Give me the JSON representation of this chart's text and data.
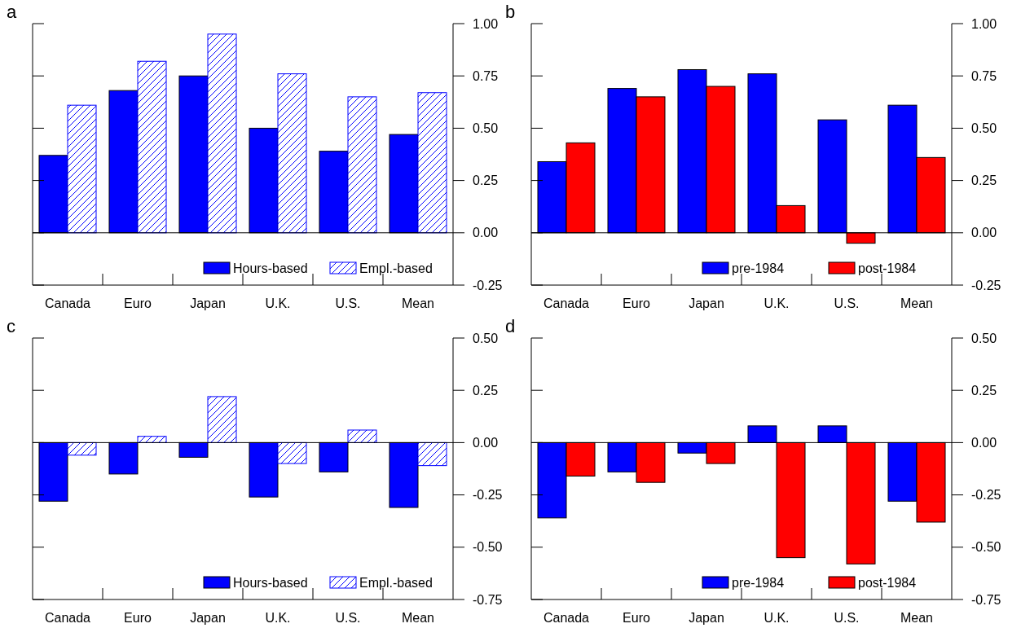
{
  "chart_data": [
    {
      "type": "bar",
      "title": "a",
      "categories": [
        "Canada",
        "Euro",
        "Japan",
        "U.K.",
        "U.S.",
        "Mean"
      ],
      "series": [
        {
          "name": "Hours-based",
          "color": "#0000ff",
          "values": [
            0.37,
            0.68,
            0.75,
            0.5,
            0.39,
            0.47
          ]
        },
        {
          "name": "Empl.-based",
          "color": "#0000ff",
          "values": [
            0.61,
            0.82,
            0.95,
            0.76,
            0.65,
            0.67
          ]
        }
      ],
      "ylim": [
        -0.25,
        1.0
      ],
      "yticks": [
        {
          "value": -0.25,
          "label": "-0.25"
        },
        {
          "value": 0,
          "label": "0.00"
        },
        {
          "value": 0.25,
          "label": "0.25"
        },
        {
          "value": 0.5,
          "label": "0.50"
        },
        {
          "value": 0.75,
          "label": "0.75"
        },
        {
          "value": 1.0,
          "label": "1.00"
        }
      ],
      "legend": "bottom right"
    },
    {
      "type": "bar",
      "title": "b",
      "categories": [
        "Canada",
        "Euro",
        "Japan",
        "U.K.",
        "U.S.",
        "Mean"
      ],
      "series": [
        {
          "name": "pre-1984",
          "color": "#0000ff",
          "values": [
            0.34,
            0.69,
            0.78,
            0.76,
            0.54,
            0.61
          ]
        },
        {
          "name": "post-1984",
          "color": "#ff0000",
          "values": [
            0.43,
            0.65,
            0.7,
            0.13,
            -0.05,
            0.36
          ]
        }
      ],
      "ylim": [
        -0.25,
        1.0
      ],
      "yticks": [
        {
          "value": -0.25,
          "label": "-0.25"
        },
        {
          "value": 0,
          "label": "0.00"
        },
        {
          "value": 0.25,
          "label": "0.25"
        },
        {
          "value": 0.5,
          "label": "0.50"
        },
        {
          "value": 0.75,
          "label": "0.75"
        },
        {
          "value": 1.0,
          "label": "1.00"
        }
      ],
      "legend": "bottom right"
    },
    {
      "type": "bar",
      "title": "c",
      "categories": [
        "Canada",
        "Euro",
        "Japan",
        "U.K.",
        "U.S.",
        "Mean"
      ],
      "series": [
        {
          "name": "Hours-based",
          "color": "#0000ff",
          "values": [
            -0.28,
            -0.15,
            -0.07,
            -0.26,
            -0.14,
            -0.31
          ]
        },
        {
          "name": "Empl.-based",
          "color": "#0000ff",
          "values": [
            -0.06,
            0.03,
            0.22,
            -0.1,
            0.06,
            -0.11
          ]
        }
      ],
      "ylim": [
        -0.75,
        0.5
      ],
      "yticks": [
        {
          "value": -0.75,
          "label": "-0.75"
        },
        {
          "value": -0.5,
          "label": "-0.50"
        },
        {
          "value": -0.25,
          "label": "-0.25"
        },
        {
          "value": 0,
          "label": "0.00"
        },
        {
          "value": 0.25,
          "label": "0.25"
        },
        {
          "value": 0.5,
          "label": "0.50"
        }
      ],
      "legend": "bottom right"
    },
    {
      "type": "bar",
      "title": "d",
      "categories": [
        "Canada",
        "Euro",
        "Japan",
        "U.K.",
        "U.S.",
        "Mean"
      ],
      "series": [
        {
          "name": "pre-1984",
          "color": "#0000ff",
          "values": [
            -0.36,
            -0.14,
            -0.05,
            0.08,
            0.08,
            -0.28
          ]
        },
        {
          "name": "post-1984",
          "color": "#ff0000",
          "values": [
            -0.16,
            -0.19,
            -0.1,
            -0.55,
            -0.58,
            -0.38
          ]
        }
      ],
      "ylim": [
        -0.75,
        0.5
      ],
      "yticks": [
        {
          "value": -0.75,
          "label": "-0.75"
        },
        {
          "value": -0.5,
          "label": "-0.50"
        },
        {
          "value": -0.25,
          "label": "-0.25"
        },
        {
          "value": 0,
          "label": "0.00"
        },
        {
          "value": 0.25,
          "label": "0.25"
        },
        {
          "value": 0.5,
          "label": "0.50"
        }
      ],
      "legend": "bottom right"
    }
  ]
}
